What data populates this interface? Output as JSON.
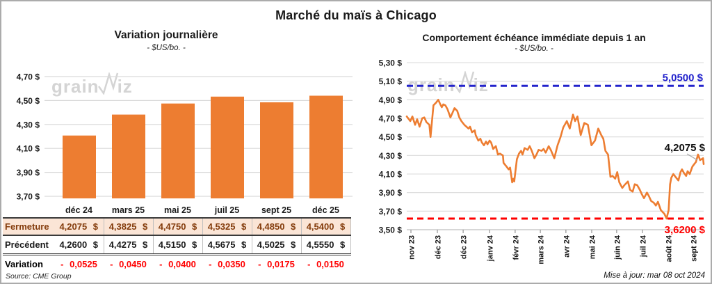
{
  "page": {
    "title": "Marché du maïs à Chicago",
    "source": "Source: CME Group",
    "updated": "Mise à jour: mar 08 oct 2024"
  },
  "watermark": {
    "left": "grain",
    "right": "iz"
  },
  "table": {
    "columns": [
      "déc 24",
      "mars 25",
      "mai 25",
      "juil 25",
      "sept 25",
      "déc 25"
    ],
    "rows": [
      {
        "id": "fermeture",
        "label": "Fermeture",
        "values": [
          "4,2075 $",
          "4,3825 $",
          "4,4750 $",
          "4,5325 $",
          "4,4850 $",
          "4,5400 $"
        ]
      },
      {
        "id": "precedent",
        "label": "Précédent",
        "values": [
          "4,2600 $",
          "4,4275 $",
          "4,5150 $",
          "4,5675 $",
          "4,5025 $",
          "4,5550 $"
        ]
      },
      {
        "id": "variation",
        "label": "Variation",
        "values": [
          "- 0,0525",
          "- 0,0450",
          "- 0,0400",
          "- 0,0350",
          "- 0,0175",
          "- 0,0150"
        ]
      }
    ]
  },
  "chart_data": [
    {
      "type": "bar",
      "title": "Variation journalière",
      "subtitle": "- $US/bo. -",
      "categories": [
        "déc 24",
        "mars 25",
        "mai 25",
        "juil 25",
        "sept 25",
        "déc 25"
      ],
      "values": [
        4.2075,
        4.3825,
        4.475,
        4.5325,
        4.485,
        4.54
      ],
      "ylim": [
        3.7,
        4.7
      ],
      "yticks": [
        {
          "v": 4.7,
          "label": "4,70 $"
        },
        {
          "v": 4.5,
          "label": "4,50 $"
        },
        {
          "v": 4.3,
          "label": "4,30 $"
        },
        {
          "v": 4.1,
          "label": "4,10 $"
        },
        {
          "v": 3.9,
          "label": "3,90 $"
        },
        {
          "v": 3.7,
          "label": "3,70 $"
        }
      ],
      "bar_color": "#ED7D31",
      "grid_color": "#D9D9D9"
    },
    {
      "type": "line",
      "title": "Comportement échéance immédiate depuis 1 an",
      "subtitle": "- $US/bo. -",
      "ylim": [
        3.5,
        5.3
      ],
      "yticks": [
        {
          "v": 5.3,
          "label": "5,30 $"
        },
        {
          "v": 5.1,
          "label": "5,10 $"
        },
        {
          "v": 4.9,
          "label": "4,90 $"
        },
        {
          "v": 4.7,
          "label": "4,70 $"
        },
        {
          "v": 4.5,
          "label": "4,50 $"
        },
        {
          "v": 4.3,
          "label": "4,30 $"
        },
        {
          "v": 4.1,
          "label": "4,10 $"
        },
        {
          "v": 3.9,
          "label": "3,90 $"
        },
        {
          "v": 3.7,
          "label": "3,70 $"
        },
        {
          "v": 3.5,
          "label": "3,50 $"
        }
      ],
      "xticks": [
        {
          "label": "nov 23",
          "t": 0.014
        },
        {
          "label": "déc 23",
          "t": 0.103
        },
        {
          "label": "déc 23",
          "t": 0.19
        },
        {
          "label": "janv 24",
          "t": 0.279
        },
        {
          "label": "févr 24",
          "t": 0.365
        },
        {
          "label": "mars 24",
          "t": 0.45
        },
        {
          "label": "avr 24",
          "t": 0.536
        },
        {
          "label": "mai 24",
          "t": 0.623
        },
        {
          "label": "juin 24",
          "t": 0.707
        },
        {
          "label": "juil 24",
          "t": 0.794
        },
        {
          "label": "août 24",
          "t": 0.88
        },
        {
          "label": "sept 24",
          "t": 0.965
        }
      ],
      "hlines": [
        {
          "value": 5.05,
          "label": "5,0500 $",
          "color": "#2222CC"
        },
        {
          "value": 3.62,
          "label": "3,6200 $",
          "color": "#FF0000"
        }
      ],
      "last_label": "4,2075 $",
      "line_color": "#ED7D31",
      "grid_color": "#D9D9D9",
      "points": [
        [
          0.0,
          4.72
        ],
        [
          0.012,
          4.67
        ],
        [
          0.019,
          4.72
        ],
        [
          0.028,
          4.63
        ],
        [
          0.035,
          4.69
        ],
        [
          0.043,
          4.61
        ],
        [
          0.052,
          4.7
        ],
        [
          0.059,
          4.71
        ],
        [
          0.066,
          4.66
        ],
        [
          0.076,
          4.63
        ],
        [
          0.08,
          4.5
        ],
        [
          0.09,
          4.84
        ],
        [
          0.099,
          4.87
        ],
        [
          0.106,
          4.9
        ],
        [
          0.113,
          4.85
        ],
        [
          0.118,
          4.82
        ],
        [
          0.123,
          4.85
        ],
        [
          0.13,
          4.84
        ],
        [
          0.137,
          4.8
        ],
        [
          0.147,
          4.71
        ],
        [
          0.154,
          4.76
        ],
        [
          0.161,
          4.81
        ],
        [
          0.17,
          4.78
        ],
        [
          0.177,
          4.71
        ],
        [
          0.184,
          4.67
        ],
        [
          0.194,
          4.63
        ],
        [
          0.201,
          4.61
        ],
        [
          0.208,
          4.59
        ],
        [
          0.213,
          4.61
        ],
        [
          0.22,
          4.55
        ],
        [
          0.229,
          4.57
        ],
        [
          0.232,
          4.52
        ],
        [
          0.241,
          4.46
        ],
        [
          0.248,
          4.48
        ],
        [
          0.253,
          4.44
        ],
        [
          0.26,
          4.41
        ],
        [
          0.267,
          4.45
        ],
        [
          0.272,
          4.42
        ],
        [
          0.279,
          4.46
        ],
        [
          0.284,
          4.44
        ],
        [
          0.291,
          4.37
        ],
        [
          0.3,
          4.4
        ],
        [
          0.307,
          4.31
        ],
        [
          0.314,
          4.32
        ],
        [
          0.324,
          4.3
        ],
        [
          0.326,
          4.22
        ],
        [
          0.336,
          4.18
        ],
        [
          0.343,
          4.15
        ],
        [
          0.348,
          4.17
        ],
        [
          0.35,
          4.13
        ],
        [
          0.355,
          4.01
        ],
        [
          0.359,
          4.05
        ],
        [
          0.362,
          4.02
        ],
        [
          0.366,
          4.13
        ],
        [
          0.371,
          4.26
        ],
        [
          0.378,
          4.32
        ],
        [
          0.385,
          4.35
        ],
        [
          0.39,
          4.31
        ],
        [
          0.397,
          4.38
        ],
        [
          0.407,
          4.36
        ],
        [
          0.414,
          4.4
        ],
        [
          0.421,
          4.35
        ],
        [
          0.43,
          4.27
        ],
        [
          0.437,
          4.31
        ],
        [
          0.444,
          4.36
        ],
        [
          0.454,
          4.35
        ],
        [
          0.461,
          4.37
        ],
        [
          0.468,
          4.33
        ],
        [
          0.478,
          4.4
        ],
        [
          0.485,
          4.36
        ],
        [
          0.497,
          4.27
        ],
        [
          0.508,
          4.41
        ],
        [
          0.518,
          4.5
        ],
        [
          0.527,
          4.6
        ],
        [
          0.539,
          4.67
        ],
        [
          0.549,
          4.59
        ],
        [
          0.56,
          4.74
        ],
        [
          0.567,
          4.67
        ],
        [
          0.575,
          4.72
        ],
        [
          0.586,
          4.52
        ],
        [
          0.598,
          4.65
        ],
        [
          0.61,
          4.63
        ],
        [
          0.622,
          4.41
        ],
        [
          0.634,
          4.46
        ],
        [
          0.645,
          4.59
        ],
        [
          0.655,
          4.52
        ],
        [
          0.662,
          4.48
        ],
        [
          0.669,
          4.35
        ],
        [
          0.678,
          4.31
        ],
        [
          0.686,
          4.07
        ],
        [
          0.693,
          4.08
        ],
        [
          0.702,
          4.05
        ],
        [
          0.709,
          4.12
        ],
        [
          0.716,
          4.01
        ],
        [
          0.726,
          3.95
        ],
        [
          0.733,
          3.98
        ],
        [
          0.745,
          4.02
        ],
        [
          0.752,
          3.93
        ],
        [
          0.761,
          3.91
        ],
        [
          0.768,
          3.99
        ],
        [
          0.776,
          3.98
        ],
        [
          0.785,
          3.93
        ],
        [
          0.792,
          3.88
        ],
        [
          0.799,
          3.84
        ],
        [
          0.809,
          3.9
        ],
        [
          0.816,
          3.86
        ],
        [
          0.823,
          3.81
        ],
        [
          0.832,
          3.79
        ],
        [
          0.839,
          3.76
        ],
        [
          0.846,
          3.8
        ],
        [
          0.856,
          3.71
        ],
        [
          0.868,
          3.67
        ],
        [
          0.875,
          3.62
        ],
        [
          0.882,
          3.71
        ],
        [
          0.887,
          3.99
        ],
        [
          0.891,
          4.06
        ],
        [
          0.898,
          4.1
        ],
        [
          0.905,
          4.07
        ],
        [
          0.915,
          4.03
        ],
        [
          0.922,
          4.12
        ],
        [
          0.927,
          4.15
        ],
        [
          0.934,
          4.11
        ],
        [
          0.941,
          4.08
        ],
        [
          0.946,
          4.13
        ],
        [
          0.953,
          4.1
        ],
        [
          0.962,
          4.18
        ],
        [
          0.969,
          4.21
        ],
        [
          0.974,
          4.23
        ],
        [
          0.981,
          4.31
        ],
        [
          0.988,
          4.25
        ],
        [
          0.998,
          4.27
        ],
        [
          1.0,
          4.2075
        ]
      ]
    }
  ]
}
